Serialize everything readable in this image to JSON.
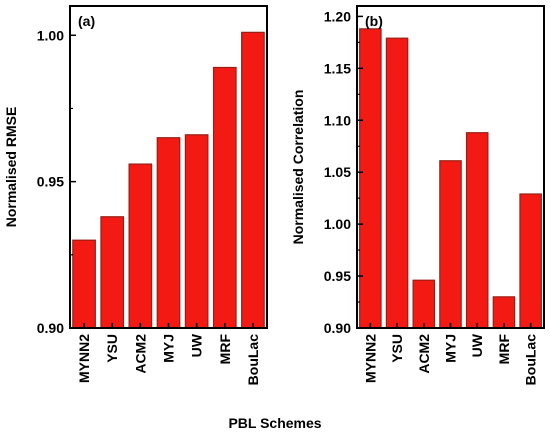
{
  "chart_data": [
    {
      "type": "bar",
      "panel_label": "(a)",
      "ylabel": "Normalised RMSE",
      "categories": [
        "MYNN2",
        "YSU",
        "ACM2",
        "MYJ",
        "UW",
        "MRF",
        "BouLac"
      ],
      "values": [
        0.93,
        0.938,
        0.956,
        0.965,
        0.966,
        0.989,
        1.001
      ],
      "ylim": [
        0.9,
        1.01
      ],
      "yticks": [
        0.9,
        0.95,
        1.0
      ],
      "ytick_labels": [
        "0.90",
        "0.95",
        "1.00"
      ],
      "bar_color": "#f31a14",
      "bar_edge_color": "#9a1e14"
    },
    {
      "type": "bar",
      "panel_label": "(b)",
      "ylabel": "Normalised Correlation",
      "categories": [
        "MYNN2",
        "YSU",
        "ACM2",
        "MYJ",
        "UW",
        "MRF",
        "BouLac"
      ],
      "values": [
        1.188,
        1.179,
        0.946,
        1.061,
        1.088,
        0.93,
        1.029
      ],
      "ylim": [
        0.9,
        1.21
      ],
      "yticks": [
        0.9,
        0.95,
        1.0,
        1.05,
        1.1,
        1.15,
        1.2
      ],
      "ytick_labels": [
        "0.90",
        "0.95",
        "1.00",
        "1.05",
        "1.10",
        "1.15",
        "1.20"
      ],
      "bar_color": "#f31a14",
      "bar_edge_color": "#9a1e14"
    }
  ],
  "figure": {
    "xlabel": "PBL Schemes"
  }
}
